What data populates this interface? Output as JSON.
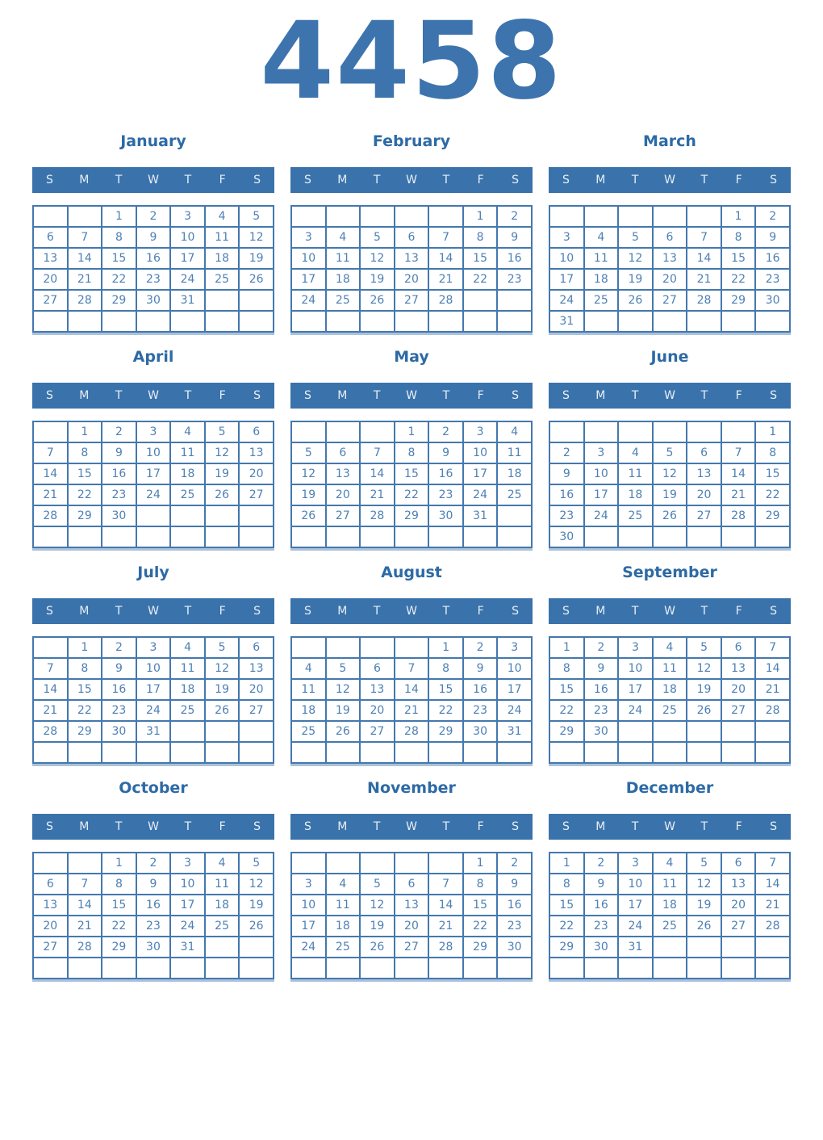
{
  "year": "4458",
  "weekday_headers": [
    "S",
    "M",
    "T",
    "W",
    "T",
    "F",
    "S"
  ],
  "colors": {
    "year_title": "#3d74ad",
    "month_title": "#2d6aa5",
    "header_bg": "#3a73ab",
    "header_text": "#e9eef5",
    "day_text": "#4d80b5",
    "grid_border": "#4478ae",
    "grid_shadow": "#aac2dc"
  },
  "months": [
    {
      "name": "January",
      "weeks": [
        [
          "",
          "",
          "1",
          "2",
          "3",
          "4",
          "5"
        ],
        [
          "6",
          "7",
          "8",
          "9",
          "10",
          "11",
          "12"
        ],
        [
          "13",
          "14",
          "15",
          "16",
          "17",
          "18",
          "19"
        ],
        [
          "20",
          "21",
          "22",
          "23",
          "24",
          "25",
          "26"
        ],
        [
          "27",
          "28",
          "29",
          "30",
          "31",
          "",
          ""
        ],
        [
          "",
          "",
          "",
          "",
          "",
          "",
          ""
        ]
      ]
    },
    {
      "name": "February",
      "weeks": [
        [
          "",
          "",
          "",
          "",
          "",
          "1",
          "2"
        ],
        [
          "3",
          "4",
          "5",
          "6",
          "7",
          "8",
          "9"
        ],
        [
          "10",
          "11",
          "12",
          "13",
          "14",
          "15",
          "16"
        ],
        [
          "17",
          "18",
          "19",
          "20",
          "21",
          "22",
          "23"
        ],
        [
          "24",
          "25",
          "26",
          "27",
          "28",
          "",
          ""
        ],
        [
          "",
          "",
          "",
          "",
          "",
          "",
          ""
        ]
      ]
    },
    {
      "name": "March",
      "weeks": [
        [
          "",
          "",
          "",
          "",
          "",
          "1",
          "2"
        ],
        [
          "3",
          "4",
          "5",
          "6",
          "7",
          "8",
          "9"
        ],
        [
          "10",
          "11",
          "12",
          "13",
          "14",
          "15",
          "16"
        ],
        [
          "17",
          "18",
          "19",
          "20",
          "21",
          "22",
          "23"
        ],
        [
          "24",
          "25",
          "26",
          "27",
          "28",
          "29",
          "30"
        ],
        [
          "31",
          "",
          "",
          "",
          "",
          "",
          ""
        ]
      ]
    },
    {
      "name": "April",
      "weeks": [
        [
          "",
          "1",
          "2",
          "3",
          "4",
          "5",
          "6"
        ],
        [
          "7",
          "8",
          "9",
          "10",
          "11",
          "12",
          "13"
        ],
        [
          "14",
          "15",
          "16",
          "17",
          "18",
          "19",
          "20"
        ],
        [
          "21",
          "22",
          "23",
          "24",
          "25",
          "26",
          "27"
        ],
        [
          "28",
          "29",
          "30",
          "",
          "",
          "",
          ""
        ],
        [
          "",
          "",
          "",
          "",
          "",
          "",
          ""
        ]
      ]
    },
    {
      "name": "May",
      "weeks": [
        [
          "",
          "",
          "",
          "1",
          "2",
          "3",
          "4"
        ],
        [
          "5",
          "6",
          "7",
          "8",
          "9",
          "10",
          "11"
        ],
        [
          "12",
          "13",
          "14",
          "15",
          "16",
          "17",
          "18"
        ],
        [
          "19",
          "20",
          "21",
          "22",
          "23",
          "24",
          "25"
        ],
        [
          "26",
          "27",
          "28",
          "29",
          "30",
          "31",
          ""
        ],
        [
          "",
          "",
          "",
          "",
          "",
          "",
          ""
        ]
      ]
    },
    {
      "name": "June",
      "weeks": [
        [
          "",
          "",
          "",
          "",
          "",
          "",
          "1"
        ],
        [
          "2",
          "3",
          "4",
          "5",
          "6",
          "7",
          "8"
        ],
        [
          "9",
          "10",
          "11",
          "12",
          "13",
          "14",
          "15"
        ],
        [
          "16",
          "17",
          "18",
          "19",
          "20",
          "21",
          "22"
        ],
        [
          "23",
          "24",
          "25",
          "26",
          "27",
          "28",
          "29"
        ],
        [
          "30",
          "",
          "",
          "",
          "",
          "",
          ""
        ]
      ]
    },
    {
      "name": "July",
      "weeks": [
        [
          "",
          "1",
          "2",
          "3",
          "4",
          "5",
          "6"
        ],
        [
          "7",
          "8",
          "9",
          "10",
          "11",
          "12",
          "13"
        ],
        [
          "14",
          "15",
          "16",
          "17",
          "18",
          "19",
          "20"
        ],
        [
          "21",
          "22",
          "23",
          "24",
          "25",
          "26",
          "27"
        ],
        [
          "28",
          "29",
          "30",
          "31",
          "",
          "",
          ""
        ],
        [
          "",
          "",
          "",
          "",
          "",
          "",
          ""
        ]
      ]
    },
    {
      "name": "August",
      "weeks": [
        [
          "",
          "",
          "",
          "",
          "1",
          "2",
          "3"
        ],
        [
          "4",
          "5",
          "6",
          "7",
          "8",
          "9",
          "10"
        ],
        [
          "11",
          "12",
          "13",
          "14",
          "15",
          "16",
          "17"
        ],
        [
          "18",
          "19",
          "20",
          "21",
          "22",
          "23",
          "24"
        ],
        [
          "25",
          "26",
          "27",
          "28",
          "29",
          "30",
          "31"
        ],
        [
          "",
          "",
          "",
          "",
          "",
          "",
          ""
        ]
      ]
    },
    {
      "name": "September",
      "weeks": [
        [
          "1",
          "2",
          "3",
          "4",
          "5",
          "6",
          "7"
        ],
        [
          "8",
          "9",
          "10",
          "11",
          "12",
          "13",
          "14"
        ],
        [
          "15",
          "16",
          "17",
          "18",
          "19",
          "20",
          "21"
        ],
        [
          "22",
          "23",
          "24",
          "25",
          "26",
          "27",
          "28"
        ],
        [
          "29",
          "30",
          "",
          "",
          "",
          "",
          ""
        ],
        [
          "",
          "",
          "",
          "",
          "",
          "",
          ""
        ]
      ]
    },
    {
      "name": "October",
      "weeks": [
        [
          "",
          "",
          "1",
          "2",
          "3",
          "4",
          "5"
        ],
        [
          "6",
          "7",
          "8",
          "9",
          "10",
          "11",
          "12"
        ],
        [
          "13",
          "14",
          "15",
          "16",
          "17",
          "18",
          "19"
        ],
        [
          "20",
          "21",
          "22",
          "23",
          "24",
          "25",
          "26"
        ],
        [
          "27",
          "28",
          "29",
          "30",
          "31",
          "",
          ""
        ],
        [
          "",
          "",
          "",
          "",
          "",
          "",
          ""
        ]
      ]
    },
    {
      "name": "November",
      "weeks": [
        [
          "",
          "",
          "",
          "",
          "",
          "1",
          "2"
        ],
        [
          "3",
          "4",
          "5",
          "6",
          "7",
          "8",
          "9"
        ],
        [
          "10",
          "11",
          "12",
          "13",
          "14",
          "15",
          "16"
        ],
        [
          "17",
          "18",
          "19",
          "20",
          "21",
          "22",
          "23"
        ],
        [
          "24",
          "25",
          "26",
          "27",
          "28",
          "29",
          "30"
        ],
        [
          "",
          "",
          "",
          "",
          "",
          "",
          ""
        ]
      ]
    },
    {
      "name": "December",
      "weeks": [
        [
          "1",
          "2",
          "3",
          "4",
          "5",
          "6",
          "7"
        ],
        [
          "8",
          "9",
          "10",
          "11",
          "12",
          "13",
          "14"
        ],
        [
          "15",
          "16",
          "17",
          "18",
          "19",
          "20",
          "21"
        ],
        [
          "22",
          "23",
          "24",
          "25",
          "26",
          "27",
          "28"
        ],
        [
          "29",
          "30",
          "31",
          "",
          "",
          "",
          ""
        ],
        [
          "",
          "",
          "",
          "",
          "",
          "",
          ""
        ]
      ]
    }
  ]
}
